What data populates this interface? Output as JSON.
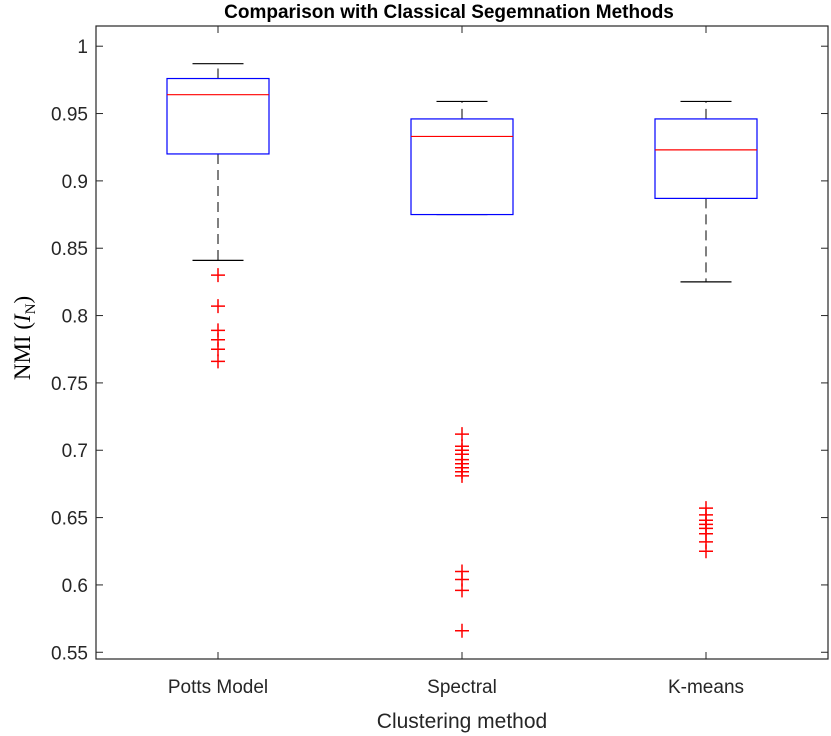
{
  "chart_data": {
    "type": "box",
    "title": "Comparison with Classical Segemnation Methods",
    "xlabel": "Clustering method",
    "ylabel": "NMI (",
    "ylabel_var": "I",
    "ylabel_sub": "N",
    "ylabel_close": ")",
    "ylim": [
      0.545,
      1.015
    ],
    "yticks": [
      0.55,
      0.6,
      0.65,
      0.7,
      0.75,
      0.8,
      0.85,
      0.9,
      0.95,
      1
    ],
    "ytick_labels": [
      "0.55",
      "0.6",
      "0.65",
      "0.7",
      "0.75",
      "0.8",
      "0.85",
      "0.9",
      "0.95",
      "1"
    ],
    "grid": false,
    "categories": [
      "Potts Model",
      "Spectral",
      "K-means"
    ],
    "series": [
      {
        "min": 0.841,
        "q1": 0.92,
        "median": 0.964,
        "q3": 0.976,
        "max": 0.987,
        "outliers": [
          0.83,
          0.807,
          0.789,
          0.782,
          0.775,
          0.766
        ]
      },
      {
        "min": 0.875,
        "q1": 0.875,
        "median": 0.933,
        "q3": 0.946,
        "max": 0.959,
        "outliers": [
          0.712,
          0.703,
          0.7,
          0.697,
          0.693,
          0.69,
          0.687,
          0.684,
          0.681,
          0.61,
          0.604,
          0.596,
          0.566
        ]
      },
      {
        "min": 0.825,
        "q1": 0.887,
        "median": 0.923,
        "q3": 0.946,
        "max": 0.959,
        "outliers": [
          0.657,
          0.652,
          0.648,
          0.645,
          0.642,
          0.638,
          0.632,
          0.625
        ]
      }
    ],
    "colors": {
      "box": "#0000ff",
      "median": "#ff0000",
      "whisker": "#000000",
      "outlier": "#ff0000",
      "axis": "#262626"
    }
  }
}
